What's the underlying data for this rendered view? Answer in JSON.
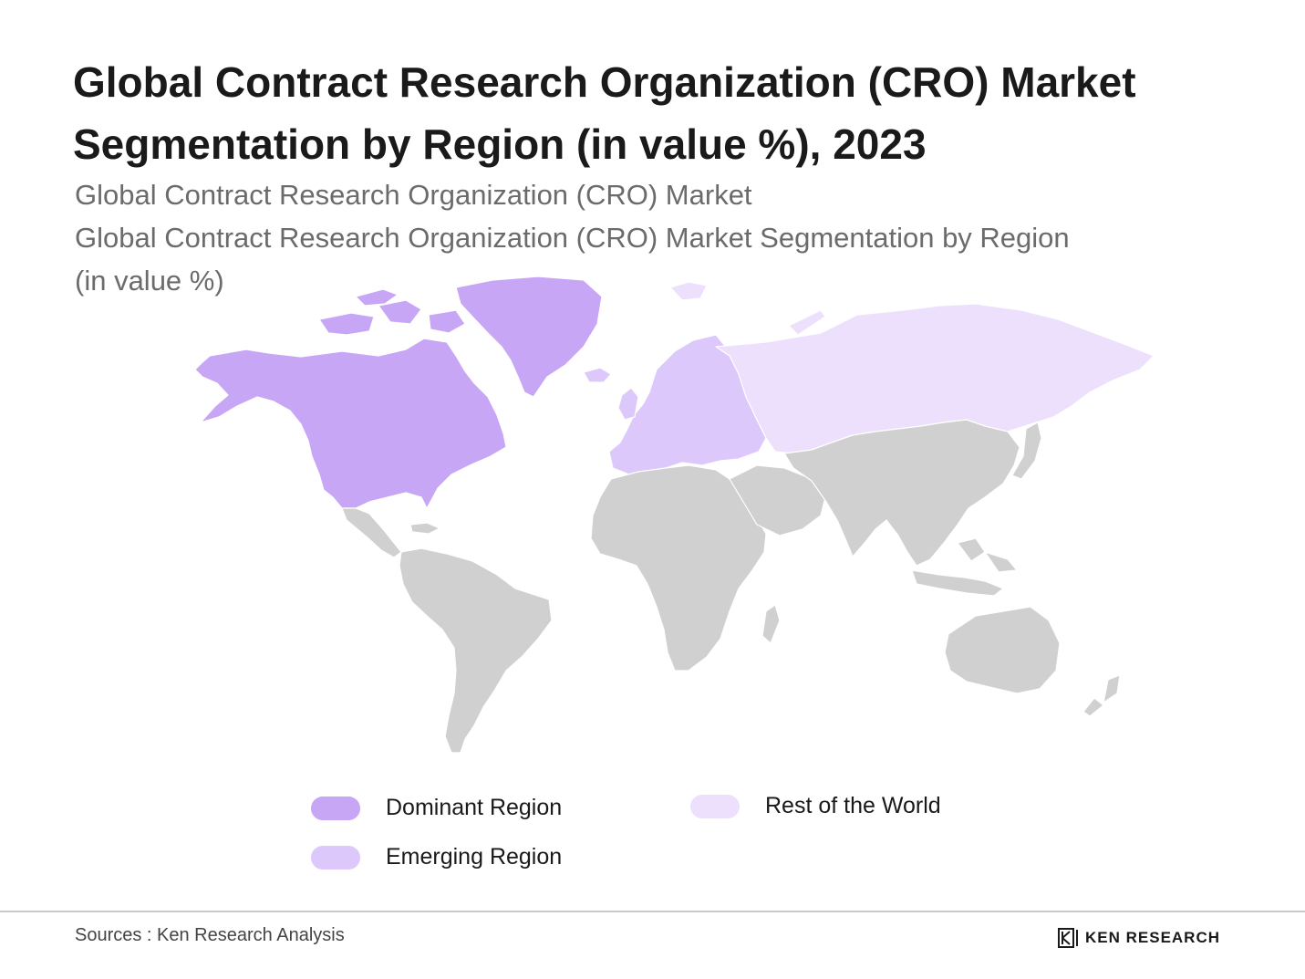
{
  "title": {
    "line1": "Global Contract Research Organization (CRO) Market",
    "line2": "Segmentation by Region (in value %), 2023"
  },
  "subtitle": {
    "line1": "Global Contract Research Organization (CRO) Market",
    "line2": "Global Contract Research Organization (CRO) Market Segmentation by Region",
    "line3": "(in value %)"
  },
  "colors": {
    "dominant": "#c7a6f5",
    "emerging": "#dcc8fb",
    "rest": "#ece0fd",
    "land": "#d0d0d0",
    "border": "#ffffff"
  },
  "legend": [
    {
      "label": "Dominant Region",
      "color": "#c7a6f5"
    },
    {
      "label": "Emerging Region",
      "color": "#dcc8fb"
    },
    {
      "label": "Rest of the World",
      "color": "#ece0fd"
    }
  ],
  "source": "Sources : Ken Research Analysis",
  "brand": {
    "name": "KEN RESEARCH",
    "icon": "ken-logo-icon"
  }
}
